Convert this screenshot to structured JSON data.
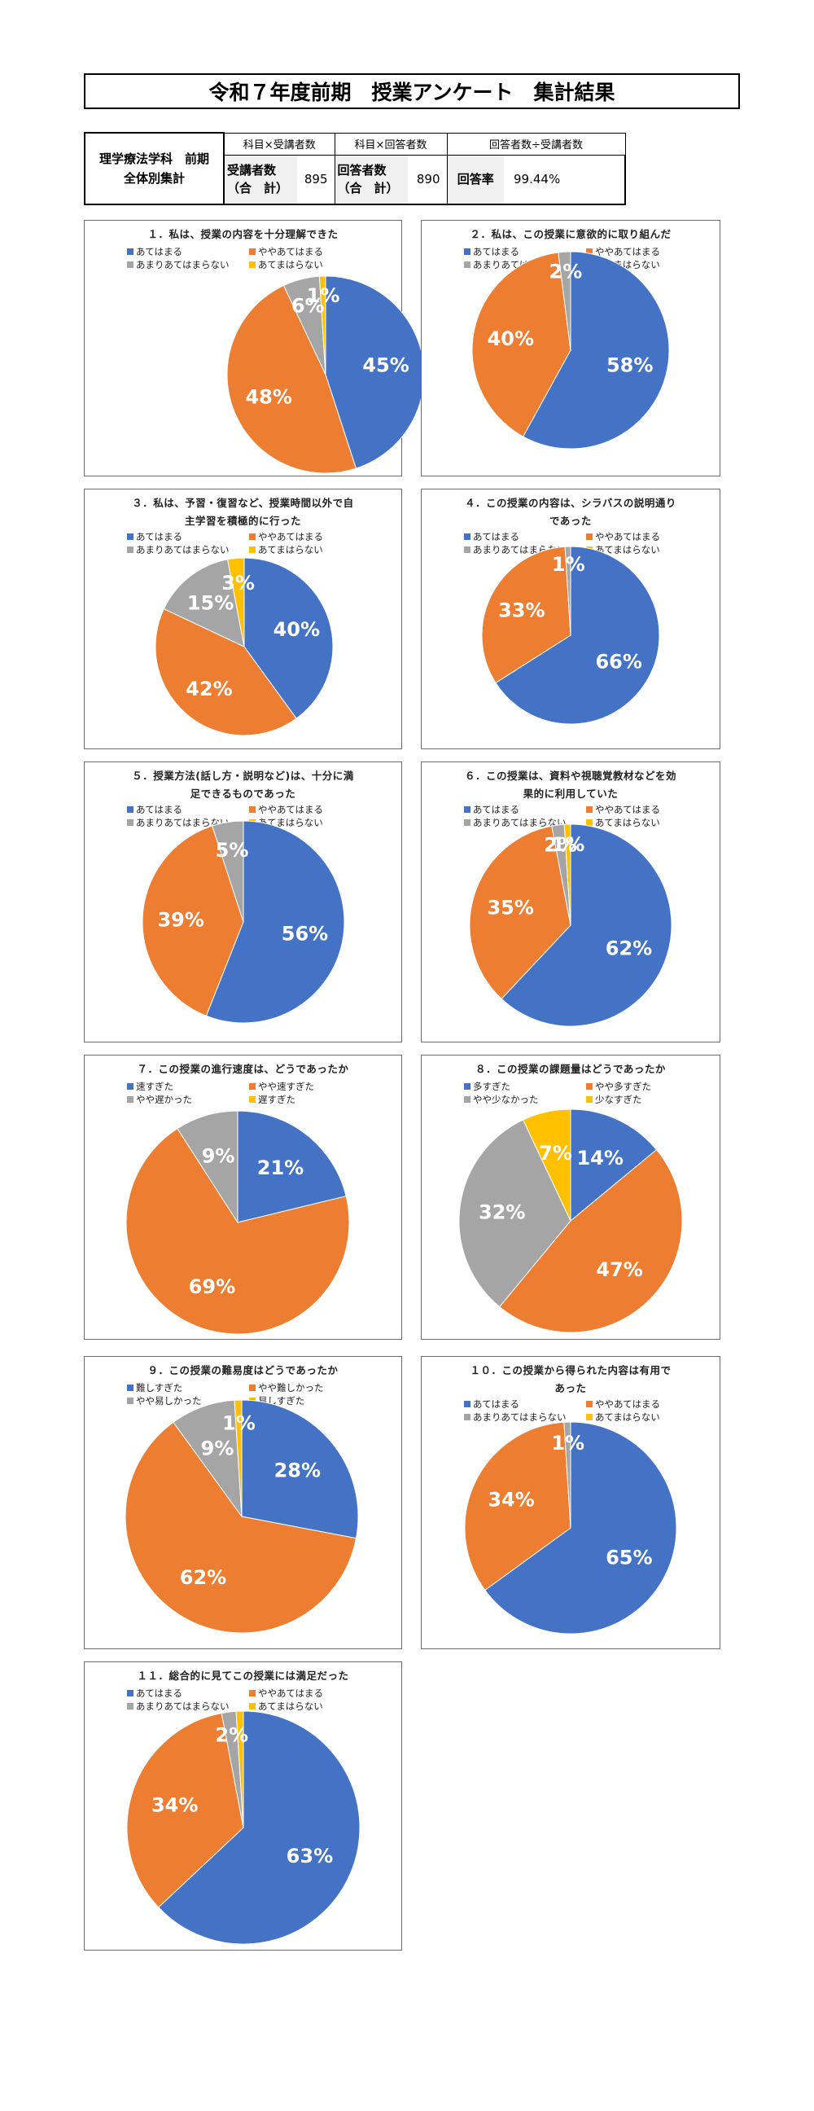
{
  "page": {
    "title": "令和７年度前期　授業アンケート　集計結果"
  },
  "summary": {
    "department_line1": "理学療法学科　前期",
    "department_line2": "全体別集計",
    "col1_caption": "科目×受講者数",
    "col2_caption": "科目×回答者数",
    "col3_caption": "回答者数÷受講者数",
    "enrolled_label_line1": "受講者数",
    "enrolled_label_line2": "（合　計）",
    "enrolled_value": "895",
    "respondents_label_line1": "回答者数",
    "respondents_label_line2": "（合　計）",
    "respondents_value": "890",
    "rate_label": "回答率",
    "rate_value": "99.44%"
  },
  "colors": {
    "blue": "#4472C4",
    "orange": "#ED7D31",
    "gray": "#A5A5A5",
    "yellow": "#FFC000"
  },
  "chart_data": [
    {
      "type": "pie",
      "title_lines": [
        "１．私は、授業の内容を十分理解できた"
      ],
      "categories": [
        "あてはまる",
        "ややあてはまる",
        "あまりあてはまらない",
        "あてまはらない"
      ],
      "values": [
        45,
        48,
        6,
        1
      ],
      "labels": [
        "45%",
        "48%",
        "6%",
        "1%"
      ]
    },
    {
      "type": "pie",
      "title_lines": [
        "２．私は、この授業に意欲的に取り組んだ"
      ],
      "categories": [
        "あてはまる",
        "ややあてはまる",
        "あまりあてはまらない",
        "あてまはらない"
      ],
      "values": [
        58,
        40,
        2,
        0
      ],
      "labels": [
        "58%",
        "40%",
        "2%",
        ""
      ]
    },
    {
      "type": "pie",
      "title_lines": [
        "３．私は、予習・復習など、授業時間以外で自",
        "主学習を積極的に行った"
      ],
      "categories": [
        "あてはまる",
        "ややあてはまる",
        "あまりあてはまらない",
        "あてまはらない"
      ],
      "values": [
        40,
        42,
        15,
        3
      ],
      "labels": [
        "40%",
        "42%",
        "15%",
        "3%"
      ]
    },
    {
      "type": "pie",
      "title_lines": [
        "４．この授業の内容は、シラバスの説明通り",
        "であった"
      ],
      "categories": [
        "あてはまる",
        "ややあてはまる",
        "あまりあてはまらない",
        "あてまはらない"
      ],
      "values": [
        66,
        33,
        1,
        0
      ],
      "labels": [
        "66%",
        "33%",
        "1%",
        ""
      ]
    },
    {
      "type": "pie",
      "title_lines": [
        "５．授業方法(話し方・説明など)は、十分に満",
        "足できるものであった"
      ],
      "categories": [
        "あてはまる",
        "ややあてはまる",
        "あまりあてはまらない",
        "あてまはらない"
      ],
      "values": [
        56,
        39,
        5,
        0
      ],
      "labels": [
        "56%",
        "39%",
        "5%",
        ""
      ]
    },
    {
      "type": "pie",
      "title_lines": [
        "６．この授業は、資料や視聴覚教材などを効",
        "果的に利用していた"
      ],
      "categories": [
        "あてはまる",
        "ややあてはまる",
        "あまりあてはまらない",
        "あてまはらない"
      ],
      "values": [
        62,
        35,
        2,
        1
      ],
      "labels": [
        "62%",
        "35%",
        "2%",
        "1%"
      ]
    },
    {
      "type": "pie",
      "title_lines": [
        "７．この授業の進行速度は、どうであったか"
      ],
      "categories": [
        "速すぎた",
        "やや速すぎた",
        "やや遅かった",
        "遅すぎた"
      ],
      "values": [
        21,
        69,
        9,
        0
      ],
      "labels": [
        "21%",
        "69%",
        "9%",
        ""
      ]
    },
    {
      "type": "pie",
      "title_lines": [
        "８．この授業の課題量はどうであったか"
      ],
      "categories": [
        "多すぎた",
        "やや多すぎた",
        "やや少なかった",
        "少なすぎた"
      ],
      "values": [
        14,
        47,
        32,
        7
      ],
      "labels": [
        "14%",
        "47%",
        "32%",
        "7%"
      ]
    },
    {
      "type": "pie",
      "title_lines": [
        "９．この授業の難易度はどうであったか"
      ],
      "categories": [
        "難しすぎた",
        "やや難しかった",
        "やや易しかった",
        "易しすぎた"
      ],
      "values": [
        28,
        62,
        9,
        1
      ],
      "labels": [
        "28%",
        "62%",
        "9%",
        "1%"
      ]
    },
    {
      "type": "pie",
      "title_lines": [
        "１０．この授業から得られた内容は有用で",
        "あった"
      ],
      "categories": [
        "あてはまる",
        "ややあてはまる",
        "あまりあてはまらない",
        "あてまはらない"
      ],
      "values": [
        65,
        34,
        1,
        0
      ],
      "labels": [
        "65%",
        "34%",
        "1%",
        ""
      ]
    },
    {
      "type": "pie",
      "title_lines": [
        "１１．総合的に見てこの授業には満足だった"
      ],
      "categories": [
        "あてはまる",
        "ややあてはまる",
        "あまりあてはまらない",
        "あてまはらない"
      ],
      "values": [
        63,
        34,
        2,
        1
      ],
      "labels": [
        "63%",
        "34%",
        "2%",
        ""
      ]
    }
  ]
}
